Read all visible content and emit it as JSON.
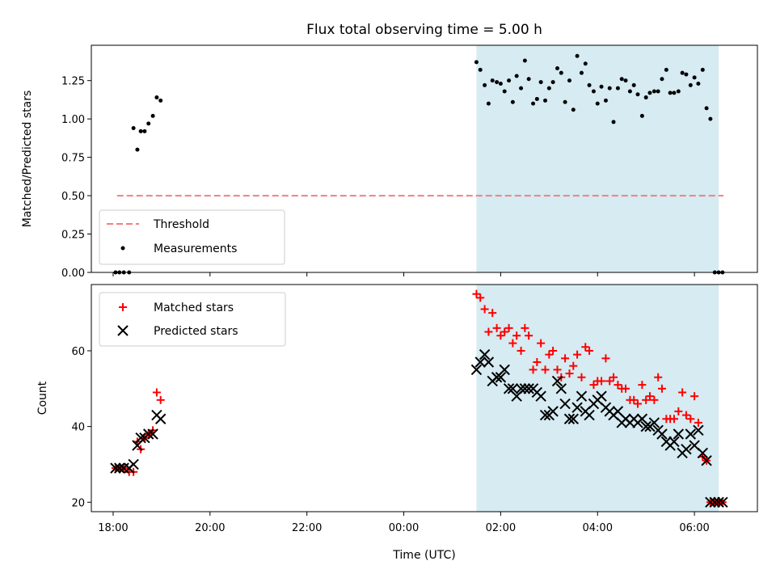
{
  "chart_data": [
    {
      "type": "scatter",
      "title": "Flux total observing time = 5.00 h",
      "ylabel": "Matched/Predicted stars",
      "xlabel": "",
      "ylim": [
        0,
        1.48
      ],
      "yticks": [
        0.0,
        0.25,
        0.5,
        0.75,
        1.0,
        1.25
      ],
      "ytick_labels": [
        "0.00",
        "0.25",
        "0.50",
        "0.75",
        "1.00",
        "1.25"
      ],
      "shaded_span": {
        "start": 25.5,
        "end": 30.5,
        "color": "#add8e6"
      },
      "threshold": {
        "name": "Threshold",
        "value": 0.5,
        "x_start": 18.08,
        "x_end": 30.6,
        "color": "#f08080"
      },
      "legend": {
        "placement": "lower-left",
        "entries": [
          "Threshold",
          "Measurements"
        ]
      },
      "series": [
        {
          "name": "Measurements",
          "marker": "dot",
          "color": "#000000",
          "x": [
            18.05,
            18.13,
            18.22,
            18.33,
            18.42,
            18.5,
            18.57,
            18.65,
            18.73,
            18.82,
            18.9,
            18.98,
            25.5,
            25.58,
            25.67,
            25.75,
            25.83,
            25.92,
            26.0,
            26.08,
            26.17,
            26.25,
            26.33,
            26.42,
            26.5,
            26.58,
            26.67,
            26.75,
            26.83,
            26.92,
            27.0,
            27.08,
            27.17,
            27.25,
            27.33,
            27.42,
            27.5,
            27.58,
            27.67,
            27.75,
            27.83,
            27.92,
            28.0,
            28.08,
            28.17,
            28.25,
            28.33,
            28.42,
            28.5,
            28.58,
            28.67,
            28.75,
            28.83,
            28.92,
            29.0,
            29.08,
            29.17,
            29.25,
            29.33,
            29.42,
            29.5,
            29.58,
            29.67,
            29.75,
            29.83,
            29.92,
            30.0,
            30.08,
            30.17,
            30.25,
            30.33,
            30.42,
            30.5,
            30.58
          ],
          "y": [
            0.0,
            0.0,
            0.0,
            0.0,
            0.94,
            0.8,
            0.92,
            0.92,
            0.97,
            1.02,
            1.14,
            1.12,
            1.37,
            1.32,
            1.22,
            1.1,
            1.25,
            1.24,
            1.23,
            1.18,
            1.25,
            1.11,
            1.28,
            1.2,
            1.38,
            1.26,
            1.1,
            1.13,
            1.24,
            1.12,
            1.2,
            1.24,
            1.33,
            1.3,
            1.11,
            1.25,
            1.06,
            1.41,
            1.3,
            1.36,
            1.22,
            1.18,
            1.1,
            1.21,
            1.12,
            1.2,
            0.98,
            1.2,
            1.26,
            1.25,
            1.18,
            1.22,
            1.16,
            1.02,
            1.14,
            1.17,
            1.18,
            1.18,
            1.26,
            1.32,
            1.17,
            1.17,
            1.18,
            1.3,
            1.29,
            1.22,
            1.27,
            1.23,
            1.32,
            1.07,
            1.0,
            0.0,
            0.0,
            0.0
          ]
        }
      ]
    },
    {
      "type": "scatter",
      "title": "",
      "xlabel": "Time (UTC)",
      "ylabel": "Count",
      "xlim": [
        17.55,
        31.3
      ],
      "ylim": [
        17.5,
        77.5
      ],
      "yticks": [
        20,
        40,
        60
      ],
      "ytick_labels": [
        "20",
        "40",
        "60"
      ],
      "xticks": [
        18,
        20,
        22,
        24,
        26,
        28,
        30
      ],
      "xtick_labels": [
        "18:00",
        "20:00",
        "22:00",
        "00:00",
        "02:00",
        "04:00",
        "06:00"
      ],
      "shaded_span": {
        "start": 25.5,
        "end": 30.5,
        "color": "#add8e6"
      },
      "legend": {
        "placement": "upper-left",
        "entries": [
          "Matched stars",
          "Predicted stars"
        ]
      },
      "series": [
        {
          "name": "Matched stars",
          "marker": "plus",
          "color": "#ff0000",
          "x": [
            18.05,
            18.13,
            18.22,
            18.33,
            18.42,
            18.5,
            18.57,
            18.65,
            18.73,
            18.82,
            18.9,
            18.98,
            25.5,
            25.58,
            25.67,
            25.75,
            25.83,
            25.92,
            26.0,
            26.08,
            26.17,
            26.25,
            26.33,
            26.42,
            26.5,
            26.58,
            26.67,
            26.75,
            26.83,
            26.92,
            27.0,
            27.08,
            27.17,
            27.25,
            27.33,
            27.42,
            27.5,
            27.58,
            27.67,
            27.75,
            27.83,
            27.92,
            28.0,
            28.08,
            28.17,
            28.25,
            28.33,
            28.42,
            28.5,
            28.58,
            28.67,
            28.75,
            28.83,
            28.92,
            29.0,
            29.08,
            29.17,
            29.25,
            29.33,
            29.42,
            29.5,
            29.58,
            29.67,
            29.75,
            29.83,
            29.92,
            30.0,
            30.08,
            30.17,
            30.25,
            30.33,
            30.42,
            30.5,
            30.58
          ],
          "y": [
            29,
            29,
            29,
            28,
            28,
            36,
            34,
            37,
            38,
            39,
            49,
            47,
            75,
            74,
            71,
            65,
            70,
            66,
            64,
            65,
            66,
            62,
            64,
            60,
            66,
            64,
            55,
            57,
            62,
            55,
            59,
            60,
            55,
            53,
            58,
            54,
            56,
            59,
            53,
            61,
            60,
            51,
            52,
            52,
            58,
            52,
            53,
            51,
            50,
            50,
            47,
            47,
            46,
            51,
            47,
            48,
            47,
            53,
            50,
            42,
            42,
            42,
            44,
            49,
            43,
            42,
            48,
            41,
            32,
            31,
            20,
            20,
            20,
            20
          ]
        },
        {
          "name": "Predicted stars",
          "marker": "x",
          "color": "#000000",
          "x": [
            18.05,
            18.13,
            18.22,
            18.33,
            18.42,
            18.5,
            18.57,
            18.65,
            18.73,
            18.82,
            18.9,
            18.98,
            25.5,
            25.58,
            25.67,
            25.75,
            25.83,
            25.92,
            26.0,
            26.08,
            26.17,
            26.25,
            26.33,
            26.42,
            26.5,
            26.58,
            26.67,
            26.75,
            26.83,
            26.92,
            27.0,
            27.08,
            27.17,
            27.25,
            27.33,
            27.42,
            27.5,
            27.58,
            27.67,
            27.75,
            27.83,
            27.92,
            28.0,
            28.08,
            28.17,
            28.25,
            28.33,
            28.42,
            28.5,
            28.58,
            28.67,
            28.75,
            28.83,
            28.92,
            29.0,
            29.08,
            29.17,
            29.25,
            29.33,
            29.42,
            29.5,
            29.58,
            29.67,
            29.75,
            29.83,
            29.92,
            30.0,
            30.08,
            30.17,
            30.25,
            30.33,
            30.42,
            30.5,
            30.58
          ],
          "y": [
            29,
            29,
            29,
            29,
            30,
            35,
            37,
            37,
            38,
            38,
            43,
            42,
            55,
            57,
            59,
            57,
            52,
            53,
            53,
            55,
            50,
            50,
            48,
            50,
            50,
            50,
            50,
            49,
            48,
            43,
            43,
            44,
            52,
            50,
            46,
            42,
            42,
            45,
            48,
            44,
            43,
            46,
            47,
            48,
            45,
            44,
            43,
            44,
            41,
            42,
            41,
            42,
            41,
            42,
            40,
            40,
            41,
            39,
            38,
            36,
            35,
            36,
            38,
            33,
            34,
            38,
            35,
            39,
            33,
            31,
            20,
            20,
            20,
            20
          ]
        }
      ]
    }
  ]
}
